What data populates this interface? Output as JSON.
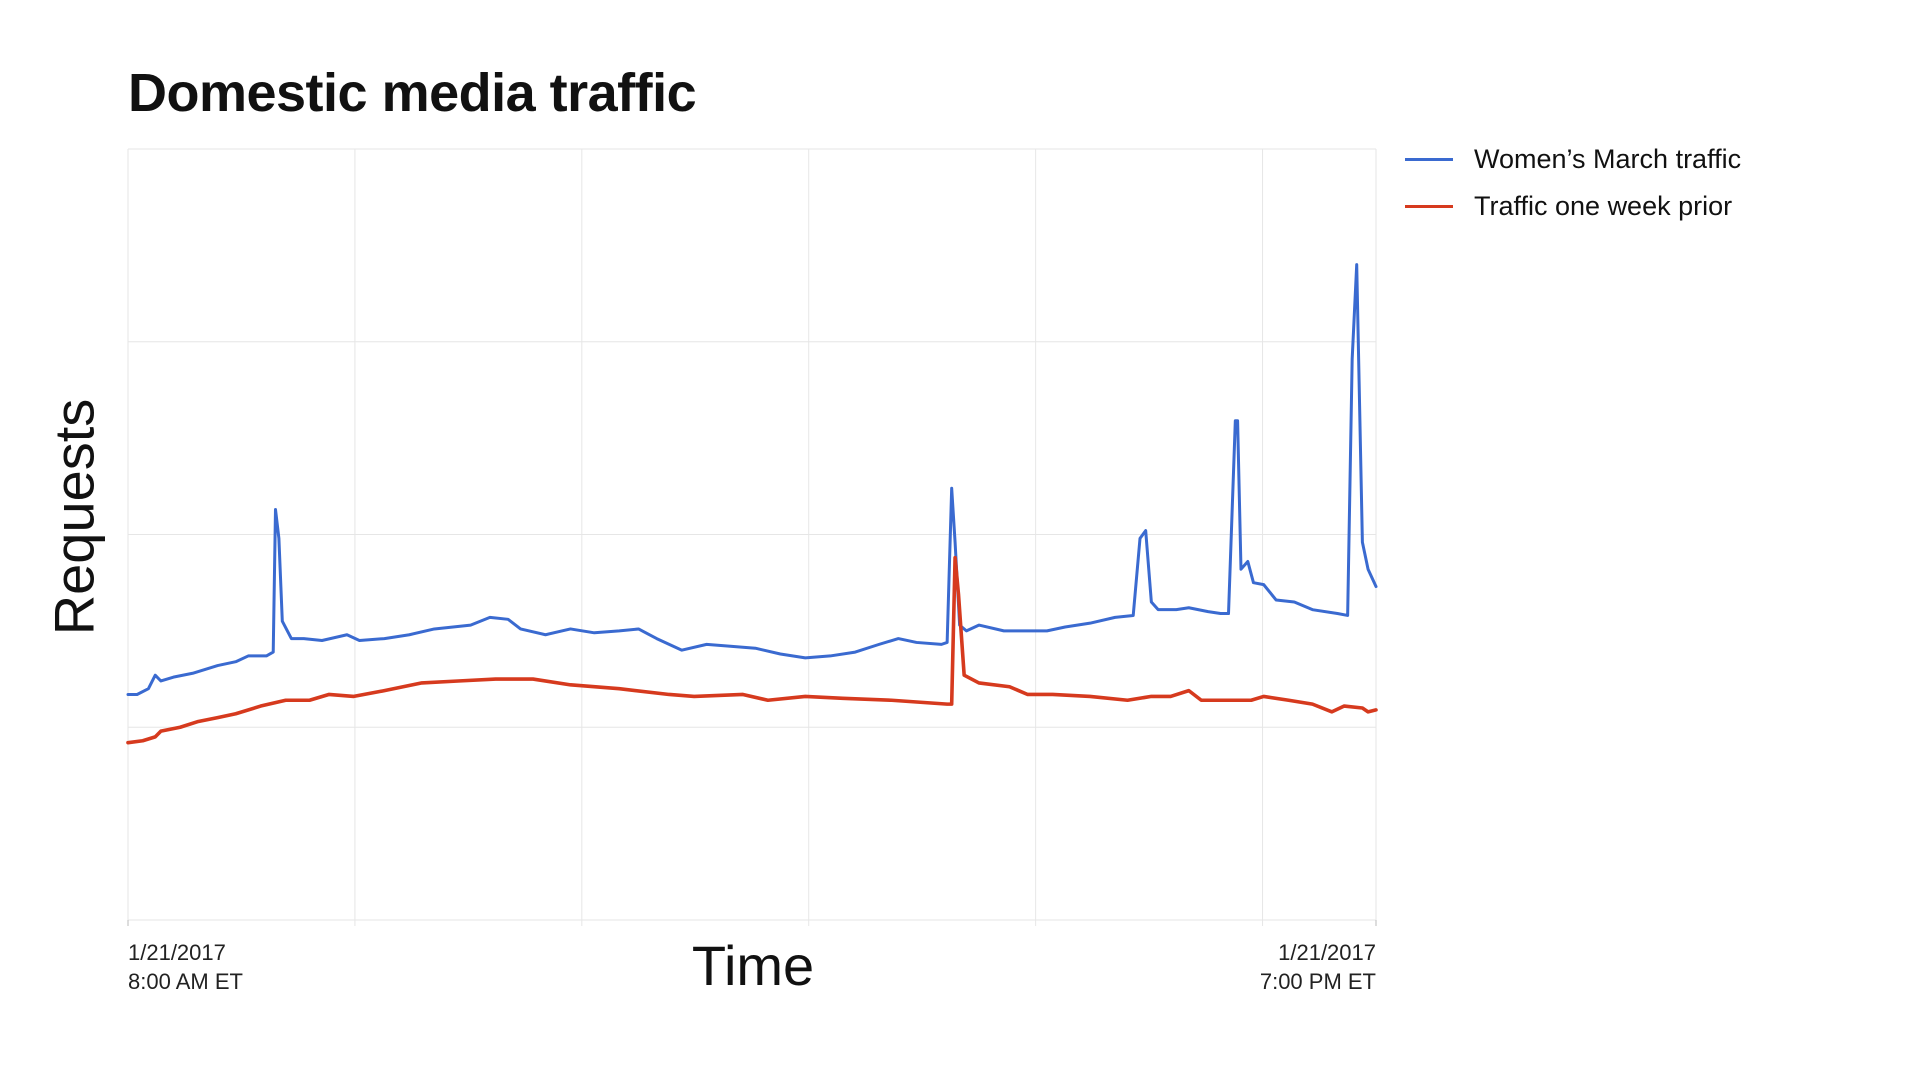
{
  "chart_data": {
    "type": "line",
    "title": "Domestic media traffic",
    "x_label": "Time",
    "y_label": "Requests",
    "xlim": [
      8,
      19
    ],
    "ylim": [
      0,
      4
    ],
    "xticks": [
      {
        "value": 8,
        "label": "1/21/2017\n8:00 AM ET"
      },
      {
        "value": 19,
        "label": "1/21/2017\n7:00 PM ET"
      }
    ],
    "xgrid": [
      8,
      10,
      12,
      14,
      16,
      18,
      19
    ],
    "ygrid": [
      0,
      1,
      2,
      3,
      4
    ],
    "grid": true,
    "legend": "right",
    "series": [
      {
        "name": "Women’s March traffic",
        "color": "#3a6ad0",
        "x": [
          8.0,
          8.08,
          8.18,
          8.24,
          8.29,
          8.4,
          8.57,
          8.68,
          8.79,
          8.95,
          9.06,
          9.22,
          9.28,
          9.3,
          9.33,
          9.36,
          9.44,
          9.55,
          9.71,
          9.93,
          10.04,
          10.26,
          10.48,
          10.7,
          11.02,
          11.19,
          11.35,
          11.46,
          11.68,
          11.9,
          12.11,
          12.33,
          12.5,
          12.66,
          12.88,
          13.1,
          13.31,
          13.53,
          13.75,
          13.97,
          14.19,
          14.41,
          14.62,
          14.79,
          14.95,
          15.17,
          15.22,
          15.26,
          15.29,
          15.33,
          15.39,
          15.5,
          15.72,
          15.93,
          16.1,
          16.26,
          16.48,
          16.7,
          16.86,
          16.92,
          16.97,
          17.02,
          17.08,
          17.24,
          17.35,
          17.52,
          17.63,
          17.7,
          17.76,
          17.78,
          17.81,
          17.87,
          17.92,
          18.01,
          18.12,
          18.28,
          18.44,
          18.66,
          18.75,
          18.79,
          18.83,
          18.88,
          18.93,
          19.0
        ],
        "values": [
          1.17,
          1.17,
          1.2,
          1.27,
          1.24,
          1.26,
          1.28,
          1.3,
          1.32,
          1.34,
          1.37,
          1.37,
          1.39,
          2.13,
          1.98,
          1.55,
          1.46,
          1.46,
          1.45,
          1.48,
          1.45,
          1.46,
          1.48,
          1.51,
          1.53,
          1.57,
          1.56,
          1.51,
          1.48,
          1.51,
          1.49,
          1.5,
          1.51,
          1.46,
          1.4,
          1.43,
          1.42,
          1.41,
          1.38,
          1.36,
          1.37,
          1.39,
          1.43,
          1.46,
          1.44,
          1.43,
          1.44,
          2.24,
          1.96,
          1.53,
          1.5,
          1.53,
          1.5,
          1.5,
          1.5,
          1.52,
          1.54,
          1.57,
          1.58,
          1.98,
          2.02,
          1.65,
          1.61,
          1.61,
          1.62,
          1.6,
          1.59,
          1.59,
          2.59,
          2.59,
          1.82,
          1.86,
          1.75,
          1.74,
          1.66,
          1.65,
          1.61,
          1.59,
          1.58,
          2.91,
          3.4,
          1.96,
          1.82,
          1.73
        ]
      },
      {
        "name": "Traffic one week prior",
        "color": "#d63a1e",
        "x": [
          8.0,
          8.13,
          8.24,
          8.29,
          8.46,
          8.62,
          8.79,
          8.95,
          9.17,
          9.39,
          9.6,
          9.77,
          9.99,
          10.26,
          10.59,
          10.91,
          11.24,
          11.57,
          11.9,
          12.33,
          12.77,
          12.99,
          13.42,
          13.64,
          13.97,
          14.3,
          14.73,
          15.22,
          15.26,
          15.29,
          15.32,
          15.37,
          15.5,
          15.77,
          15.93,
          16.15,
          16.48,
          16.81,
          17.02,
          17.19,
          17.35,
          17.46,
          17.68,
          17.9,
          18.01,
          18.23,
          18.44,
          18.61,
          18.72,
          18.88,
          18.93,
          19.0
        ],
        "values": [
          0.92,
          0.93,
          0.95,
          0.98,
          1.0,
          1.03,
          1.05,
          1.07,
          1.11,
          1.14,
          1.14,
          1.17,
          1.16,
          1.19,
          1.23,
          1.24,
          1.25,
          1.25,
          1.22,
          1.2,
          1.17,
          1.16,
          1.17,
          1.14,
          1.16,
          1.15,
          1.14,
          1.12,
          1.12,
          1.88,
          1.69,
          1.27,
          1.23,
          1.21,
          1.17,
          1.17,
          1.16,
          1.14,
          1.16,
          1.16,
          1.19,
          1.14,
          1.14,
          1.14,
          1.16,
          1.14,
          1.12,
          1.08,
          1.11,
          1.1,
          1.08,
          1.09
        ]
      }
    ]
  }
}
